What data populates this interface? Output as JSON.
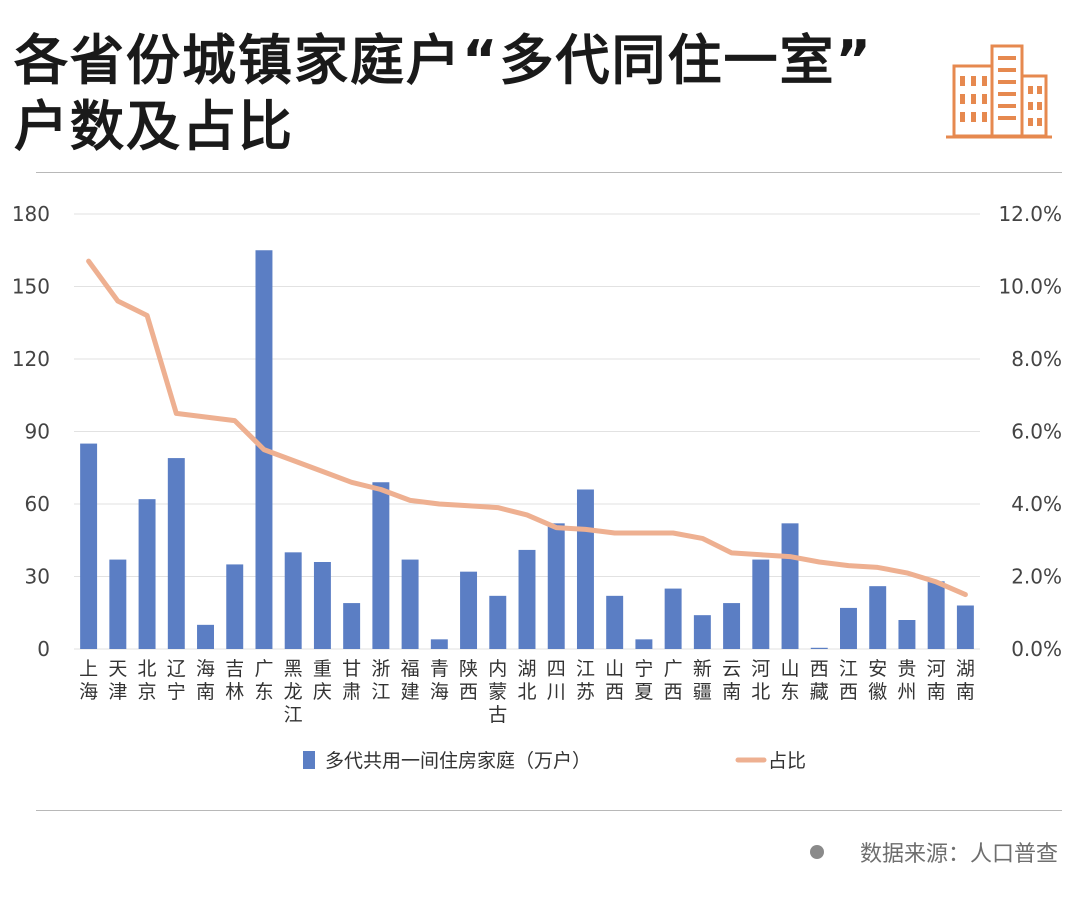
{
  "header": {
    "title_line1": "各省份城镇家庭户“多代同住一室”",
    "title_line2": "户数及占比",
    "logo_icon": "buildings-icon"
  },
  "source": {
    "text": "数据来源：人口普查"
  },
  "colors": {
    "bar": "#5b7ec4",
    "line": "#eeb091",
    "logo": "#e6894f",
    "grid": "#e2e2e2",
    "axis_text": "#444444"
  },
  "chart_data": {
    "type": "bar",
    "categories": [
      "上海",
      "天津",
      "北京",
      "辽宁",
      "海南",
      "吉林",
      "广东",
      "黑龙江",
      "重庆",
      "甘肃",
      "浙江",
      "福建",
      "青海",
      "陕西",
      "内蒙古",
      "湖北",
      "四川",
      "江苏",
      "山西",
      "宁夏",
      "广西",
      "新疆",
      "云南",
      "河北",
      "山东",
      "西藏",
      "江西",
      "安徽",
      "贵州",
      "河南",
      "湖南"
    ],
    "series": [
      {
        "name": "多代共用一间住房家庭（万户）",
        "type": "bar",
        "axis": "left",
        "values": [
          85,
          37,
          62,
          79,
          10,
          35,
          165,
          40,
          36,
          19,
          69,
          37,
          4,
          32,
          22,
          41,
          52,
          66,
          22,
          4,
          25,
          14,
          19,
          37,
          52,
          0.5,
          17,
          26,
          12,
          28,
          18
        ]
      },
      {
        "name": "占比",
        "type": "line",
        "axis": "right",
        "values": [
          10.7,
          9.6,
          9.2,
          6.5,
          6.4,
          6.3,
          5.5,
          5.2,
          4.9,
          4.6,
          4.4,
          4.1,
          4.0,
          3.95,
          3.9,
          3.7,
          3.35,
          3.3,
          3.2,
          3.2,
          3.2,
          3.05,
          2.65,
          2.6,
          2.55,
          2.4,
          2.3,
          2.25,
          2.1,
          1.85,
          1.5
        ]
      }
    ],
    "y_left": {
      "ylim": [
        0,
        180
      ],
      "ticks": [
        "0",
        "30",
        "60",
        "90",
        "120",
        "150",
        "180"
      ]
    },
    "y_right": {
      "ylim": [
        0,
        12
      ],
      "ticks": [
        "0.0%",
        "2.0%",
        "4.0%",
        "6.0%",
        "8.0%",
        "10.0%",
        "12.0%"
      ]
    },
    "grid": true,
    "legend": "bottom"
  }
}
